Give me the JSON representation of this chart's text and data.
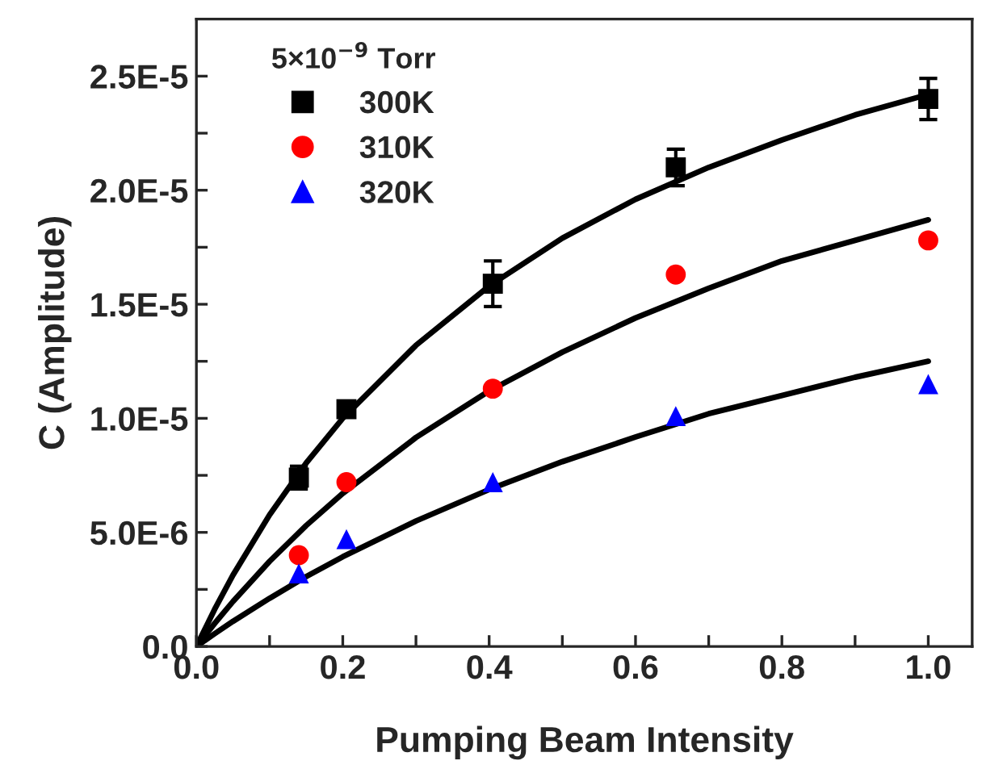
{
  "chart_data": {
    "type": "scatter",
    "xlabel": "Pumping Beam Intensity",
    "ylabel": "C (Amplitude)",
    "legend_title": "5×10$^{−9}$ Torr",
    "legend": "top left",
    "grid": false,
    "xlim": [
      0,
      1.06
    ],
    "ylim": [
      0,
      2.75e-05
    ],
    "xticks": [
      {
        "value": 0,
        "label": "0.0"
      },
      {
        "value": 0.1,
        "label": null
      },
      {
        "value": 0.2,
        "label": "0.2"
      },
      {
        "value": 0.3,
        "label": null
      },
      {
        "value": 0.4,
        "label": "0.4"
      },
      {
        "value": 0.5,
        "label": null
      },
      {
        "value": 0.6,
        "label": "0.6"
      },
      {
        "value": 0.7,
        "label": null
      },
      {
        "value": 0.8,
        "label": "0.8"
      },
      {
        "value": 0.9,
        "label": null
      },
      {
        "value": 1.0,
        "label": "1.0"
      }
    ],
    "yticks": [
      {
        "value": 0,
        "label": "0.0"
      },
      {
        "value": 2.5e-06,
        "label": null
      },
      {
        "value": 5e-06,
        "label": "5.0E-6"
      },
      {
        "value": 7.5e-06,
        "label": null
      },
      {
        "value": 1e-05,
        "label": "1.0E-5"
      },
      {
        "value": 1.25e-05,
        "label": null
      },
      {
        "value": 1.5e-05,
        "label": "1.5E-5"
      },
      {
        "value": 1.75e-05,
        "label": null
      },
      {
        "value": 2e-05,
        "label": "2.0E-5"
      },
      {
        "value": 2.25e-05,
        "label": null
      },
      {
        "value": 2.5e-05,
        "label": "2.5E-5"
      }
    ],
    "series": [
      {
        "name": "300K",
        "color": "#000000",
        "marker": "square",
        "x": [
          0.14,
          0.205,
          0.405,
          0.655,
          1.0
        ],
        "values": [
          7.4e-06,
          1.04e-05,
          1.59e-05,
          2.1e-05,
          2.4e-05
        ],
        "errors": [
          5e-07,
          null,
          1e-06,
          8e-07,
          9e-07
        ]
      },
      {
        "name": "310K",
        "color": "#ff0000",
        "marker": "circle",
        "x": [
          0.14,
          0.205,
          0.405,
          0.655,
          1.0
        ],
        "values": [
          4e-06,
          7.2e-06,
          1.13e-05,
          1.63e-05,
          1.78e-05
        ]
      },
      {
        "name": "320K",
        "color": "#0000ff",
        "marker": "triangle",
        "x": [
          0.14,
          0.205,
          0.405,
          0.655,
          1.0
        ],
        "values": [
          3.2e-06,
          4.7e-06,
          7.2e-06,
          1.01e-05,
          1.15e-05
        ]
      },
      {
        "type": "line",
        "color": "#000000",
        "line_style": "solid",
        "x": [
          0,
          0.025,
          0.05,
          0.1,
          0.15,
          0.2,
          0.3,
          0.4,
          0.5,
          0.6,
          0.7,
          0.8,
          0.9,
          1.0
        ],
        "values": [
          0,
          1.63e-06,
          3.13e-06,
          5.77e-06,
          8.04e-06,
          1e-05,
          1.32e-05,
          1.58e-05,
          1.79e-05,
          1.96e-05,
          2.1e-05,
          2.22e-05,
          2.33e-05,
          2.42e-05
        ]
      },
      {
        "type": "line",
        "color": "#000000",
        "line_style": "solid",
        "x": [
          0,
          0.025,
          0.05,
          0.1,
          0.15,
          0.2,
          0.3,
          0.4,
          0.5,
          0.6,
          0.7,
          0.8,
          0.9,
          1.0
        ],
        "values": [
          0,
          1.01e-06,
          1.97e-06,
          3.73e-06,
          5.3e-06,
          6.71e-06,
          9.16e-06,
          1.12e-05,
          1.29e-05,
          1.44e-05,
          1.57e-05,
          1.69e-05,
          1.78e-05,
          1.87e-05
        ]
      },
      {
        "type": "line",
        "color": "#000000",
        "line_style": "solid",
        "x": [
          0,
          0.025,
          0.05,
          0.1,
          0.15,
          0.2,
          0.3,
          0.4,
          0.5,
          0.6,
          0.7,
          0.8,
          0.9,
          1.0
        ],
        "values": [
          0,
          5.6e-07,
          1.1e-06,
          2.11e-06,
          3.06e-06,
          3.93e-06,
          5.5e-06,
          6.88e-06,
          8.1e-06,
          9.18e-06,
          1.02e-05,
          1.1e-05,
          1.18e-05,
          1.25e-05
        ]
      }
    ]
  }
}
